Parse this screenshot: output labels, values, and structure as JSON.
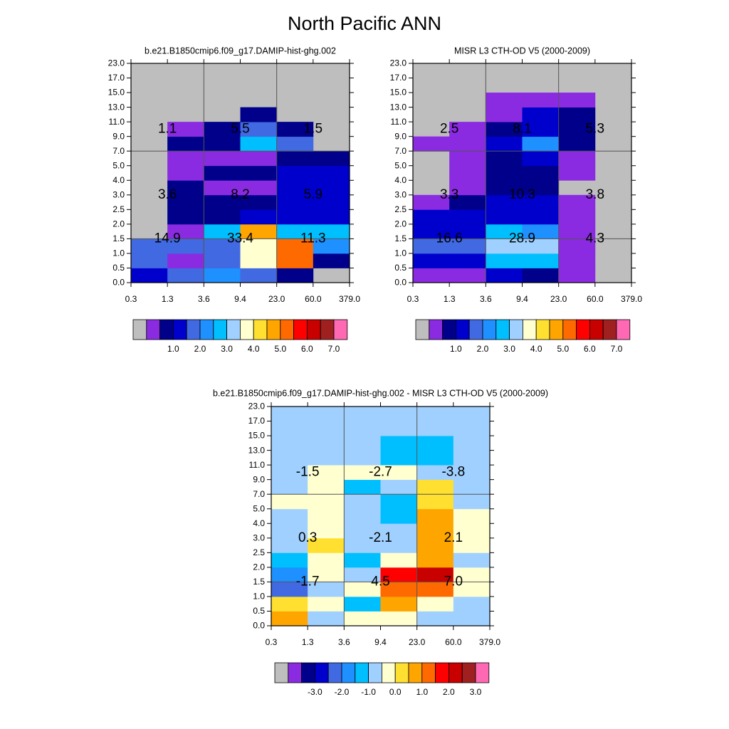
{
  "title": "North Pacific ANN",
  "colors": {
    "missing": "#bebebe",
    "gridline": "#555555",
    "frame": "#000000",
    "palette": [
      "#bebebe",
      "#8a2be2",
      "#00008b",
      "#0000cd",
      "#4169e1",
      "#1e90ff",
      "#00bfff",
      "#a0d0ff",
      "#ffffd0",
      "#ffe030",
      "#ffa500",
      "#ff6a00",
      "#ff0000",
      "#c80000",
      "#a02020",
      "#ff69b4"
    ]
  },
  "chart_data": [
    {
      "type": "heatmap",
      "title": "b.e21.B1850cmip6.f09_g17.DAMIP-hist-ghg.002",
      "xlabel": "",
      "ylabel": "",
      "x_ticks": [
        "0.3",
        "1.3",
        "3.6",
        "9.4",
        "23.0",
        "60.0",
        "379.0"
      ],
      "y_ticks": [
        "0.0",
        "0.5",
        "1.0",
        "1.5",
        "2.0",
        "2.5",
        "3.0",
        "4.0",
        "5.0",
        "7.0",
        "9.0",
        "11.0",
        "13.0",
        "15.0",
        "17.0",
        "23.0"
      ],
      "cells": [
        [
          3,
          4,
          5,
          4,
          2,
          -1
        ],
        [
          4,
          1,
          4,
          8,
          11,
          2
        ],
        [
          4,
          4,
          4,
          8,
          11,
          5
        ],
        [
          -1,
          1,
          6,
          10,
          6,
          6
        ],
        [
          -1,
          2,
          2,
          3,
          3,
          3
        ],
        [
          -1,
          2,
          2,
          2,
          3,
          3
        ],
        [
          -1,
          2,
          1,
          1,
          3,
          3
        ],
        [
          -1,
          1,
          2,
          2,
          3,
          3
        ],
        [
          -1,
          1,
          1,
          1,
          2,
          2
        ],
        [
          -1,
          2,
          2,
          6,
          4,
          -1
        ],
        [
          -1,
          1,
          2,
          4,
          2,
          -1
        ],
        [
          -1,
          -1,
          -1,
          2,
          -1,
          -1
        ],
        [
          -1,
          -1,
          -1,
          -1,
          -1,
          -1
        ],
        [
          -1,
          -1,
          -1,
          -1,
          -1,
          -1
        ],
        [
          -1,
          -1,
          -1,
          -1,
          -1,
          -1
        ]
      ],
      "annotations": [
        {
          "label": "1.1",
          "col": 0,
          "row": 2
        },
        {
          "label": "5.5",
          "col": 1,
          "row": 2
        },
        {
          "label": "1.5",
          "col": 2,
          "row": 2
        },
        {
          "label": "3.6",
          "col": 0,
          "row": 1
        },
        {
          "label": "8.2",
          "col": 1,
          "row": 1
        },
        {
          "label": "5.9",
          "col": 2,
          "row": 1
        },
        {
          "label": "14.9",
          "col": 0,
          "row": 0
        },
        {
          "label": "33.4",
          "col": 1,
          "row": 0
        },
        {
          "label": "11.3",
          "col": 2,
          "row": 0
        }
      ],
      "colorbar_labels": [
        "1.0",
        "2.0",
        "3.0",
        "4.0",
        "5.0",
        "6.0",
        "7.0"
      ]
    },
    {
      "type": "heatmap",
      "title": "MISR L3 CTH-OD V5 (2000-2009)",
      "xlabel": "",
      "ylabel": "",
      "x_ticks": [
        "0.3",
        "1.3",
        "3.6",
        "9.4",
        "23.0",
        "60.0",
        "379.0"
      ],
      "y_ticks": [
        "0.0",
        "0.5",
        "1.0",
        "1.5",
        "2.0",
        "2.5",
        "3.0",
        "4.0",
        "5.0",
        "7.0",
        "9.0",
        "11.0",
        "13.0",
        "15.0",
        "17.0",
        "23.0"
      ],
      "cells": [
        [
          1,
          1,
          3,
          2,
          1,
          -1
        ],
        [
          3,
          3,
          6,
          6,
          1,
          -1
        ],
        [
          4,
          4,
          7,
          7,
          1,
          -1
        ],
        [
          3,
          3,
          6,
          5,
          1,
          -1
        ],
        [
          3,
          3,
          3,
          3,
          1,
          -1
        ],
        [
          1,
          2,
          3,
          3,
          1,
          -1
        ],
        [
          -1,
          1,
          2,
          2,
          -1,
          -1
        ],
        [
          -1,
          1,
          2,
          2,
          1,
          -1
        ],
        [
          -1,
          1,
          2,
          3,
          1,
          -1
        ],
        [
          1,
          1,
          3,
          5,
          2,
          -1
        ],
        [
          -1,
          1,
          2,
          3,
          2,
          -1
        ],
        [
          -1,
          -1,
          1,
          3,
          2,
          -1
        ],
        [
          -1,
          -1,
          1,
          1,
          1,
          -1
        ],
        [
          -1,
          -1,
          -1,
          -1,
          -1,
          -1
        ],
        [
          -1,
          -1,
          -1,
          -1,
          -1,
          -1
        ]
      ],
      "annotations": [
        {
          "label": "2.5",
          "col": 0,
          "row": 2
        },
        {
          "label": "8.1",
          "col": 1,
          "row": 2
        },
        {
          "label": "5.3",
          "col": 2,
          "row": 2
        },
        {
          "label": "3.3",
          "col": 0,
          "row": 1
        },
        {
          "label": "10.3",
          "col": 1,
          "row": 1
        },
        {
          "label": "3.8",
          "col": 2,
          "row": 1
        },
        {
          "label": "16.6",
          "col": 0,
          "row": 0
        },
        {
          "label": "28.9",
          "col": 1,
          "row": 0
        },
        {
          "label": "4.3",
          "col": 2,
          "row": 0
        }
      ],
      "colorbar_labels": [
        "1.0",
        "2.0",
        "3.0",
        "4.0",
        "5.0",
        "6.0",
        "7.0"
      ]
    },
    {
      "type": "heatmap",
      "title": "b.e21.B1850cmip6.f09_g17.DAMIP-hist-ghg.002 - MISR L3 CTH-OD V5 (2000-2009)",
      "xlabel": "",
      "ylabel": "",
      "x_ticks": [
        "0.3",
        "1.3",
        "3.6",
        "9.4",
        "23.0",
        "60.0",
        "379.0"
      ],
      "y_ticks": [
        "0.0",
        "0.5",
        "1.0",
        "1.5",
        "2.0",
        "2.5",
        "3.0",
        "4.0",
        "5.0",
        "7.0",
        "9.0",
        "11.0",
        "13.0",
        "15.0",
        "17.0",
        "23.0"
      ],
      "cells": [
        [
          10,
          7,
          8,
          8,
          7,
          7
        ],
        [
          9,
          8,
          6,
          10,
          8,
          7
        ],
        [
          4,
          7,
          8,
          11,
          11,
          8
        ],
        [
          5,
          8,
          7,
          12,
          13,
          8
        ],
        [
          6,
          8,
          6,
          8,
          10,
          7
        ],
        [
          7,
          9,
          7,
          7,
          10,
          8
        ],
        [
          7,
          8,
          7,
          7,
          10,
          8
        ],
        [
          7,
          8,
          7,
          6,
          10,
          8
        ],
        [
          8,
          8,
          7,
          6,
          9,
          7
        ],
        [
          7,
          8,
          6,
          7,
          9,
          7
        ],
        [
          7,
          8,
          8,
          8,
          7,
          7
        ],
        [
          7,
          7,
          7,
          6,
          6,
          7
        ],
        [
          7,
          7,
          7,
          6,
          6,
          7
        ],
        [
          7,
          7,
          7,
          7,
          7,
          7
        ],
        [
          7,
          7,
          7,
          7,
          7,
          7
        ]
      ],
      "annotations": [
        {
          "label": "-1.5",
          "col": 0,
          "row": 2
        },
        {
          "label": "-2.7",
          "col": 1,
          "row": 2
        },
        {
          "label": "-3.8",
          "col": 2,
          "row": 2
        },
        {
          "label": "0.3",
          "col": 0,
          "row": 1
        },
        {
          "label": "-2.1",
          "col": 1,
          "row": 1
        },
        {
          "label": "2.1",
          "col": 2,
          "row": 1
        },
        {
          "label": "-1.7",
          "col": 0,
          "row": 0
        },
        {
          "label": "4.5",
          "col": 1,
          "row": 0
        },
        {
          "label": "7.0",
          "col": 2,
          "row": 0
        }
      ],
      "colorbar_labels": [
        "-3.0",
        "-2.0",
        "-1.0",
        "0.0",
        "1.0",
        "2.0",
        "3.0"
      ]
    }
  ]
}
